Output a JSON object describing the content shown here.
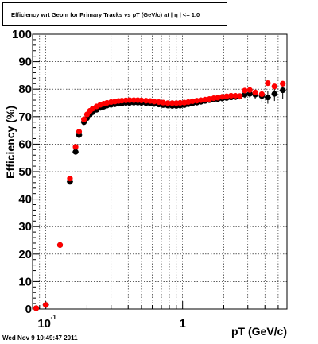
{
  "chart_data": {
    "type": "scatter",
    "title": "Efficiency wrt Geom for Primary Tracks vs pT (GeV/c) at | η | <= 1.0",
    "xlabel": "pT (GeV/c)",
    "ylabel": "Efficiency (%)",
    "xscale": "log",
    "xlim": [
      0.08,
      5.8
    ],
    "ylim": [
      0,
      100
    ],
    "yticks": [
      "0",
      "10",
      "20",
      "30",
      "40",
      "50",
      "60",
      "70",
      "80",
      "90",
      "100"
    ],
    "xtick_major": [
      {
        "base": "10",
        "exp": "-1",
        "value": 0.1
      },
      {
        "base": "1",
        "exp": "",
        "value": 1
      }
    ],
    "grid": true,
    "series": [
      {
        "color": "#000000",
        "points": [
          [
            0.085,
            0.3,
            0
          ],
          [
            0.1,
            1.5,
            0
          ],
          [
            0.127,
            23.3,
            0
          ],
          [
            0.15,
            46.3,
            0
          ],
          [
            0.165,
            57.2,
            0
          ],
          [
            0.175,
            63.3,
            0
          ],
          [
            0.19,
            68.0,
            0
          ],
          [
            0.2,
            69.5,
            0
          ],
          [
            0.21,
            70.8,
            0
          ],
          [
            0.22,
            71.6,
            0
          ],
          [
            0.235,
            72.5,
            0
          ],
          [
            0.25,
            73.2,
            0
          ],
          [
            0.265,
            73.6,
            0
          ],
          [
            0.28,
            74.0,
            0
          ],
          [
            0.3,
            74.3,
            0
          ],
          [
            0.32,
            74.5,
            0
          ],
          [
            0.34,
            74.7,
            0
          ],
          [
            0.36,
            74.8,
            0
          ],
          [
            0.385,
            75.0,
            0
          ],
          [
            0.41,
            75.0,
            0
          ],
          [
            0.44,
            75.1,
            0
          ],
          [
            0.47,
            75.1,
            0
          ],
          [
            0.5,
            75.0,
            0
          ],
          [
            0.54,
            74.9,
            0
          ],
          [
            0.58,
            74.8,
            0
          ],
          [
            0.62,
            74.6,
            0
          ],
          [
            0.67,
            74.4,
            0
          ],
          [
            0.72,
            74.2,
            0
          ],
          [
            0.78,
            74.0,
            0
          ],
          [
            0.84,
            73.9,
            0
          ],
          [
            0.9,
            73.9,
            0
          ],
          [
            0.96,
            74.0,
            0
          ],
          [
            1.03,
            74.2,
            0
          ],
          [
            1.1,
            74.5,
            0
          ],
          [
            1.18,
            74.8,
            0
          ],
          [
            1.27,
            75.1,
            0
          ],
          [
            1.36,
            75.4,
            0
          ],
          [
            1.46,
            75.7,
            0
          ],
          [
            1.57,
            76.0,
            0
          ],
          [
            1.69,
            76.2,
            0
          ],
          [
            1.81,
            76.4,
            0
          ],
          [
            1.95,
            76.6,
            0
          ],
          [
            2.1,
            76.8,
            0
          ],
          [
            2.26,
            77.0,
            0
          ],
          [
            2.43,
            77.1,
            0
          ],
          [
            2.62,
            77.3,
            0
          ],
          [
            2.85,
            78.0,
            1.2
          ],
          [
            3.1,
            78.3,
            1.4
          ],
          [
            3.4,
            78.0,
            1.6
          ],
          [
            3.8,
            77.5,
            2.0
          ],
          [
            4.2,
            77.0,
            2.3
          ],
          [
            4.7,
            78.3,
            2.6
          ],
          [
            5.4,
            79.6,
            3.2
          ]
        ]
      },
      {
        "color": "#ff0000",
        "points": [
          [
            0.085,
            0.3
          ],
          [
            0.1,
            1.5
          ],
          [
            0.127,
            23.3
          ],
          [
            0.15,
            47.5
          ],
          [
            0.165,
            59.0
          ],
          [
            0.175,
            64.5
          ],
          [
            0.19,
            69.0
          ],
          [
            0.2,
            70.8
          ],
          [
            0.21,
            72.1
          ],
          [
            0.22,
            72.9
          ],
          [
            0.235,
            73.7
          ],
          [
            0.25,
            74.3
          ],
          [
            0.265,
            74.7
          ],
          [
            0.28,
            75.0
          ],
          [
            0.3,
            75.3
          ],
          [
            0.32,
            75.5
          ],
          [
            0.34,
            75.7
          ],
          [
            0.36,
            75.8
          ],
          [
            0.385,
            75.9
          ],
          [
            0.41,
            76.0
          ],
          [
            0.44,
            76.0
          ],
          [
            0.47,
            76.0
          ],
          [
            0.5,
            75.9
          ],
          [
            0.54,
            75.8
          ],
          [
            0.58,
            75.7
          ],
          [
            0.62,
            75.5
          ],
          [
            0.67,
            75.3
          ],
          [
            0.72,
            75.1
          ],
          [
            0.78,
            74.9
          ],
          [
            0.84,
            74.9
          ],
          [
            0.9,
            74.9
          ],
          [
            0.96,
            75.0
          ],
          [
            1.03,
            75.1
          ],
          [
            1.1,
            75.3
          ],
          [
            1.18,
            75.6
          ],
          [
            1.27,
            75.8
          ],
          [
            1.36,
            76.0
          ],
          [
            1.46,
            76.2
          ],
          [
            1.57,
            76.4
          ],
          [
            1.69,
            76.7
          ],
          [
            1.81,
            76.9
          ],
          [
            1.95,
            77.2
          ],
          [
            2.1,
            77.4
          ],
          [
            2.26,
            77.6
          ],
          [
            2.43,
            77.6
          ],
          [
            2.62,
            77.5
          ],
          [
            2.85,
            79.5
          ],
          [
            3.1,
            79.7
          ],
          [
            3.4,
            78.8
          ],
          [
            3.8,
            78.2
          ],
          [
            4.2,
            82.2
          ],
          [
            4.7,
            81.0
          ],
          [
            5.4,
            82.0
          ]
        ]
      }
    ]
  },
  "footer": "Wed Nov  9 10:49:47 2011"
}
